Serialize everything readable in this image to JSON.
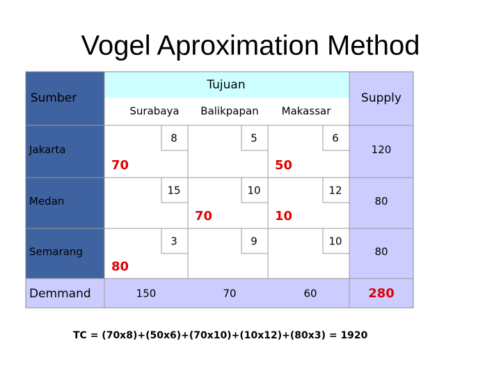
{
  "title": "Vogel Aproximation Method",
  "table": {
    "source_label": "Sumber",
    "destination_label": "Tujuan",
    "supply_label": "Supply",
    "columns": [
      "Surabaya",
      "Balikpapan",
      "Makassar"
    ],
    "rows": [
      {
        "name": "Jakarta",
        "costs": [
          8,
          5,
          6
        ],
        "allocations": [
          70,
          null,
          50
        ],
        "supply": 120
      },
      {
        "name": "Medan",
        "costs": [
          15,
          10,
          12
        ],
        "allocations": [
          null,
          70,
          10
        ],
        "supply": 80
      },
      {
        "name": "Semarang",
        "costs": [
          3,
          9,
          10
        ],
        "allocations": [
          80,
          null,
          null
        ],
        "supply": 80
      }
    ],
    "demand": {
      "label": "Demmand",
      "values": [
        150,
        70,
        60
      ],
      "total": 280
    }
  },
  "formula": "TC = (70x8)+(50x6)+(70x10)+(10x12)+(80x3) = 1920"
}
